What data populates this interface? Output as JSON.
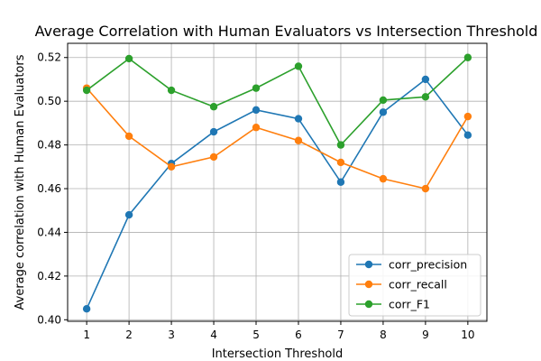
{
  "chart_data": {
    "type": "line",
    "title": "Average Correlation with Human Evaluators vs Intersection Threshold",
    "xlabel": "Intersection Threshold",
    "ylabel": "Average correlation with Human Evaluators",
    "x": [
      1,
      2,
      3,
      4,
      5,
      6,
      7,
      8,
      9,
      10
    ],
    "xlim": [
      0.55,
      10.45
    ],
    "ylim": [
      0.3993,
      0.5265
    ],
    "yticks": [
      0.4,
      0.42,
      0.44,
      0.46,
      0.48,
      0.5,
      0.52
    ],
    "ytick_labels": [
      "0.40",
      "0.42",
      "0.44",
      "0.46",
      "0.48",
      "0.50",
      "0.52"
    ],
    "xtick_labels": [
      "1",
      "2",
      "3",
      "4",
      "5",
      "6",
      "7",
      "8",
      "9",
      "10"
    ],
    "grid": true,
    "legend_position": "lower-right",
    "series": [
      {
        "name": "corr_precision",
        "color": "#1f77b4",
        "values": [
          0.405,
          0.448,
          0.4715,
          0.486,
          0.496,
          0.492,
          0.463,
          0.495,
          0.51,
          0.4845
        ]
      },
      {
        "name": "corr_recall",
        "color": "#ff7f0e",
        "values": [
          0.506,
          0.484,
          0.47,
          0.4745,
          0.488,
          0.482,
          0.472,
          0.4645,
          0.46,
          0.493
        ]
      },
      {
        "name": "corr_F1",
        "color": "#2ca02c",
        "values": [
          0.505,
          0.5195,
          0.505,
          0.4975,
          0.506,
          0.516,
          0.48,
          0.5005,
          0.502,
          0.52
        ]
      }
    ]
  }
}
